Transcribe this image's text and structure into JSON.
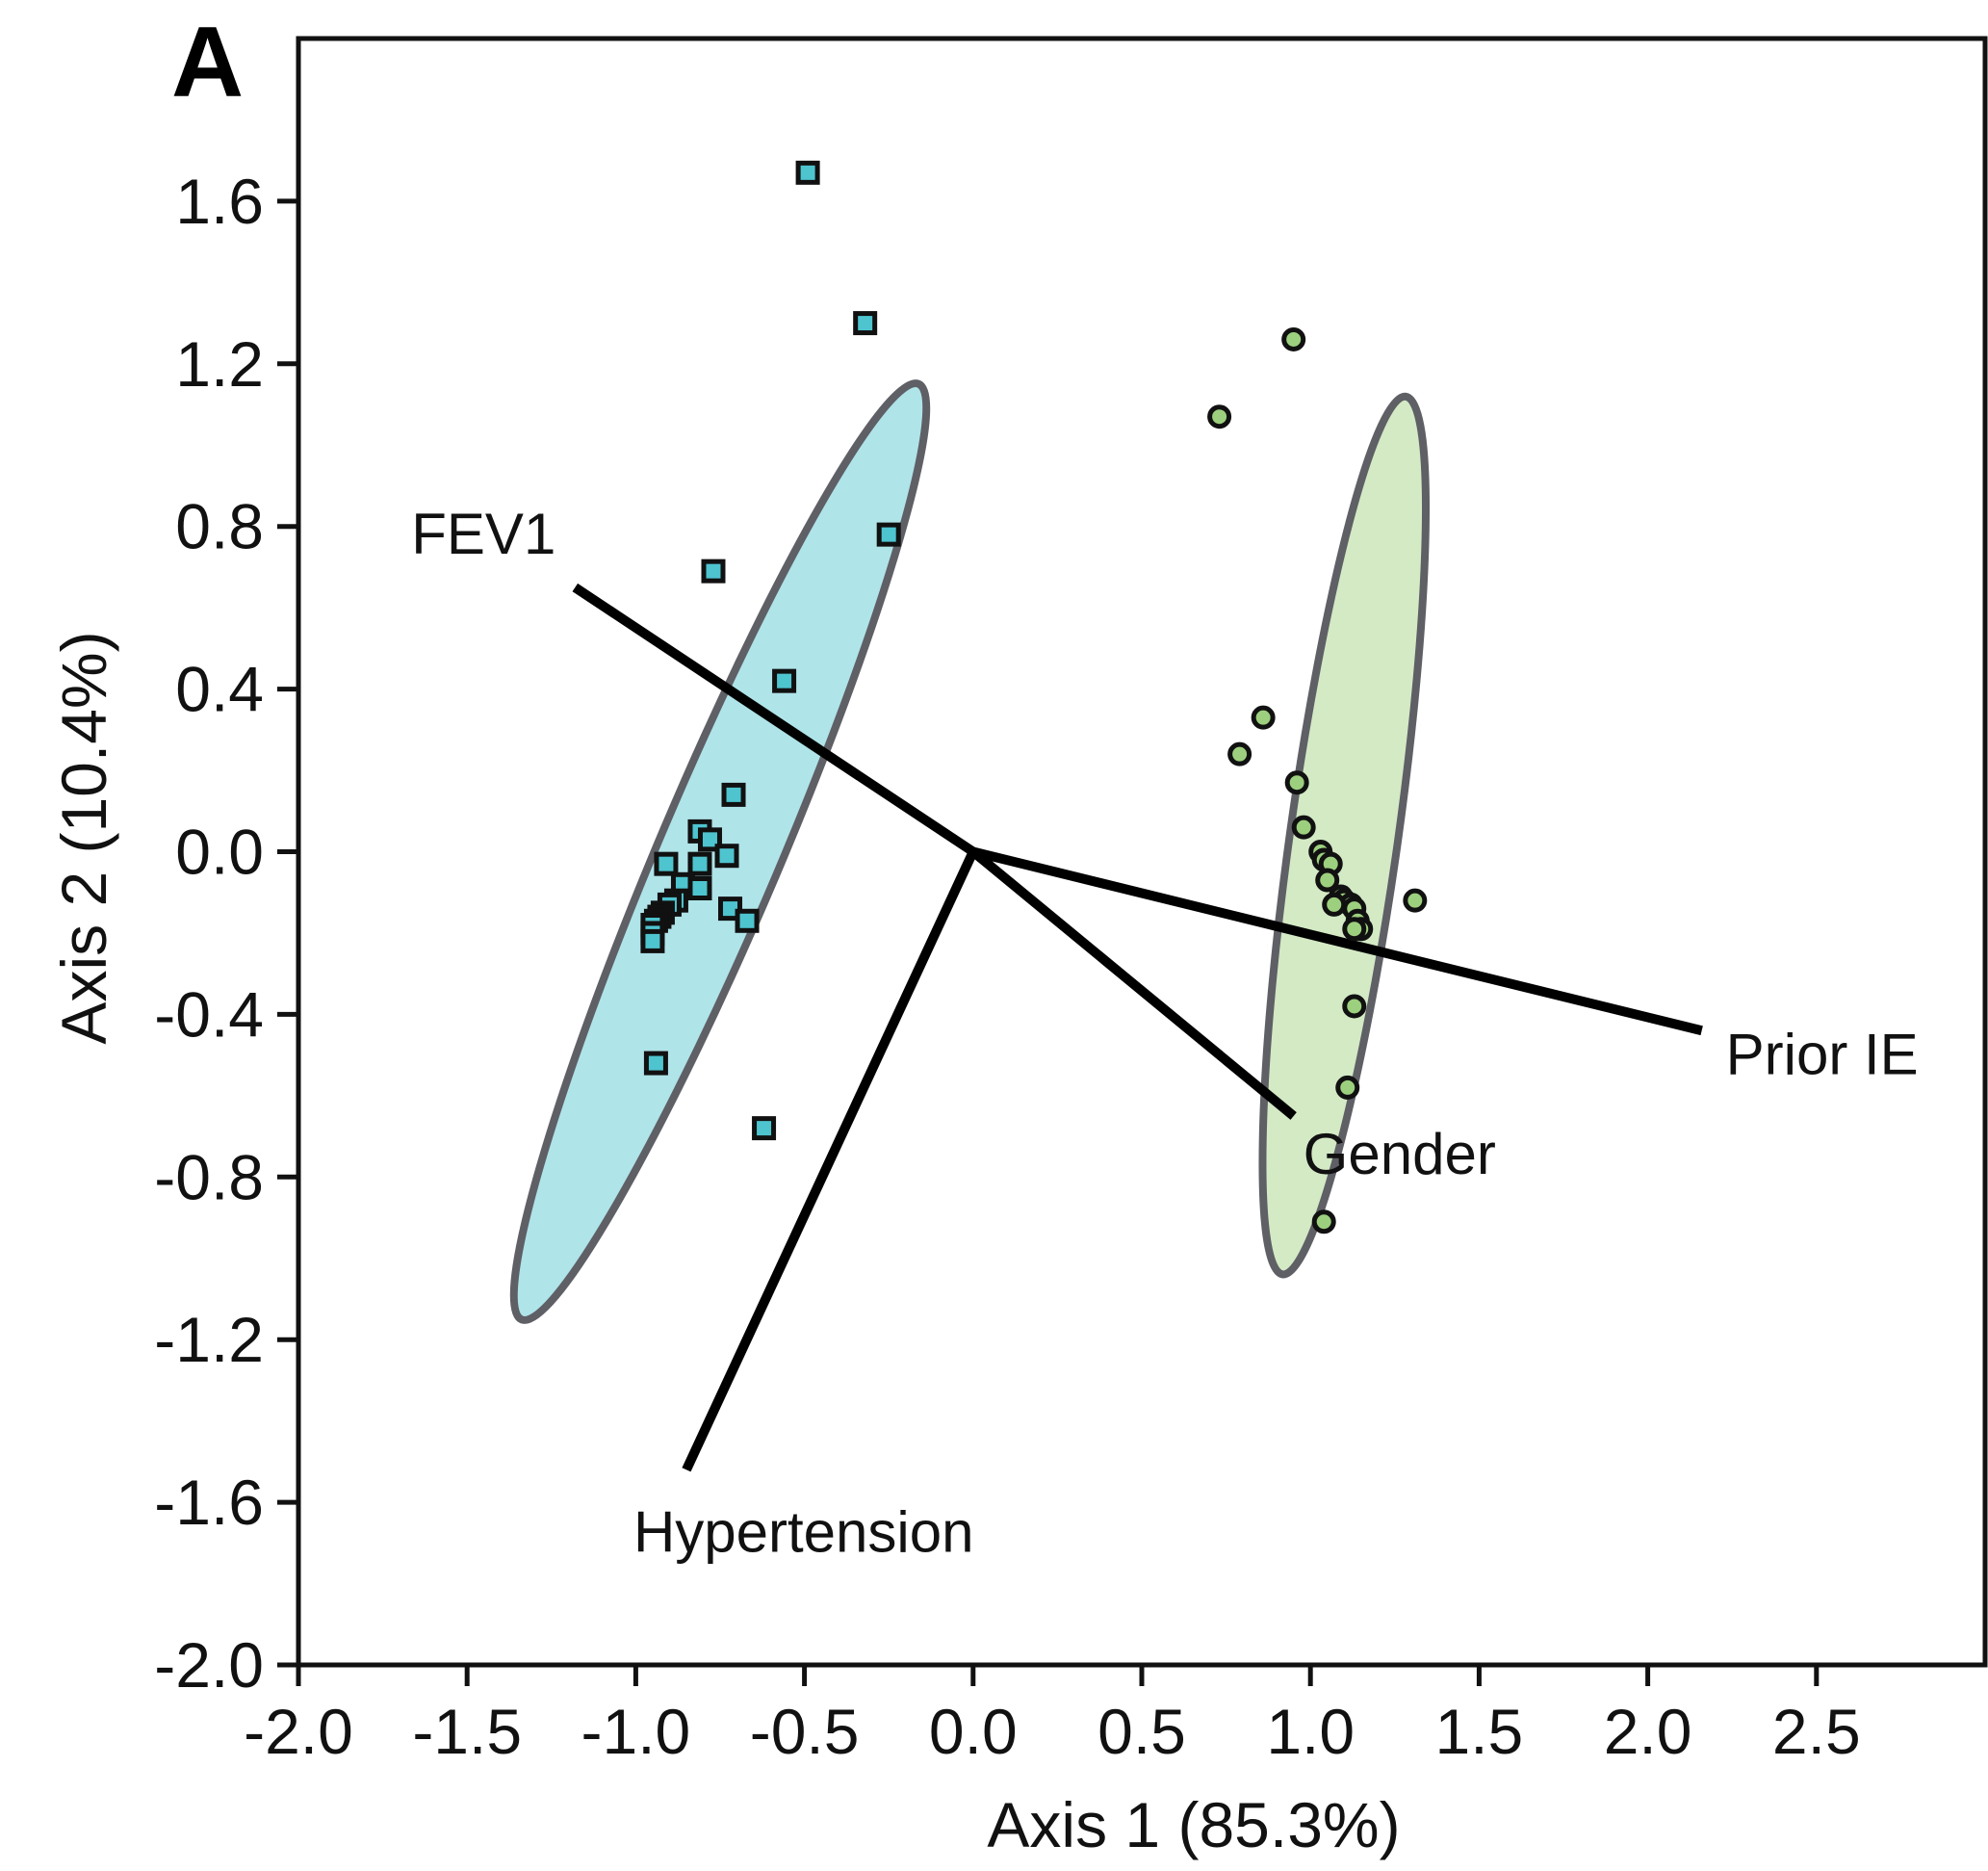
{
  "panel_label": "A",
  "chart_data": {
    "type": "scatter",
    "title": "",
    "xlabel": "Axis 1 (85.3%)",
    "ylabel": "Axis 2 (10.4%)",
    "xlim": [
      -2.0,
      3.0
    ],
    "ylim": [
      -2.0,
      2.0
    ],
    "xticks": [
      -2.0,
      -1.5,
      -1.0,
      -0.5,
      0.0,
      0.5,
      1.0,
      1.5,
      2.0,
      2.5
    ],
    "xtick_labels": [
      "-2.0",
      "-1.5",
      "-1.0",
      "-0.5",
      "0.0",
      "0.5",
      "1.0",
      "1.5",
      "2.0",
      "2.5"
    ],
    "yticks": [
      -2.0,
      -1.6,
      -1.2,
      -0.8,
      -0.4,
      0.0,
      0.4,
      0.8,
      1.2,
      1.6
    ],
    "ytick_labels": [
      "-2.0",
      "-1.6",
      "-1.2",
      "-0.8",
      "-0.4",
      "0.0",
      "0.4",
      "0.8",
      "1.2",
      "1.6"
    ],
    "grid": false,
    "legend": "none",
    "series": [
      {
        "marker": "square",
        "color": "#4ec4cf",
        "points": [
          [
            -0.49,
            1.67
          ],
          [
            -0.32,
            1.3
          ],
          [
            -0.25,
            0.78
          ],
          [
            -0.77,
            0.69
          ],
          [
            -0.56,
            0.42
          ],
          [
            -0.71,
            0.14
          ],
          [
            -0.81,
            0.05
          ],
          [
            -0.78,
            0.03
          ],
          [
            -0.91,
            -0.03
          ],
          [
            -0.73,
            -0.01
          ],
          [
            -0.81,
            -0.03
          ],
          [
            -0.86,
            -0.08
          ],
          [
            -0.81,
            -0.09
          ],
          [
            -0.72,
            -0.14
          ],
          [
            -0.67,
            -0.17
          ],
          [
            -0.88,
            -0.12
          ],
          [
            -0.9,
            -0.13
          ],
          [
            -0.92,
            -0.15
          ],
          [
            -0.93,
            -0.16
          ],
          [
            -0.94,
            -0.17
          ],
          [
            -0.95,
            -0.18
          ],
          [
            -0.95,
            -0.2
          ],
          [
            -0.95,
            -0.22
          ],
          [
            -0.94,
            -0.52
          ],
          [
            -0.62,
            -0.68
          ]
        ],
        "ellipse": {
          "center": [
            -0.75,
            0.0
          ],
          "semi_axes": [
            1.25,
            0.18
          ],
          "angle_deg": 67
        }
      },
      {
        "marker": "circle",
        "color": "#9dd07e",
        "points": [
          [
            0.95,
            1.26
          ],
          [
            0.73,
            1.07
          ],
          [
            0.86,
            0.33
          ],
          [
            0.79,
            0.24
          ],
          [
            0.96,
            0.17
          ],
          [
            0.98,
            0.06
          ],
          [
            1.03,
            0.0
          ],
          [
            1.04,
            -0.02
          ],
          [
            1.06,
            -0.03
          ],
          [
            1.05,
            -0.07
          ],
          [
            1.09,
            -0.11
          ],
          [
            1.1,
            -0.12
          ],
          [
            1.12,
            -0.13
          ],
          [
            1.13,
            -0.14
          ],
          [
            1.14,
            -0.17
          ],
          [
            1.15,
            -0.19
          ],
          [
            1.13,
            -0.19
          ],
          [
            1.07,
            -0.13
          ],
          [
            1.31,
            -0.12
          ],
          [
            1.13,
            -0.38
          ],
          [
            1.11,
            -0.58
          ],
          [
            1.04,
            -0.91
          ]
        ],
        "ellipse": {
          "center": [
            1.1,
            0.04
          ],
          "semi_axes": [
            1.09,
            0.16
          ],
          "angle_deg": 82
        }
      }
    ],
    "vectors": [
      {
        "label": "FEV1",
        "end": [
          -1.18,
          0.65
        ]
      },
      {
        "label": "Prior IE",
        "end": [
          2.16,
          -0.44
        ]
      },
      {
        "label": "Gender",
        "end": [
          0.95,
          -0.65
        ]
      },
      {
        "label": "Hypertension",
        "end": [
          -0.85,
          -1.52
        ]
      }
    ]
  }
}
